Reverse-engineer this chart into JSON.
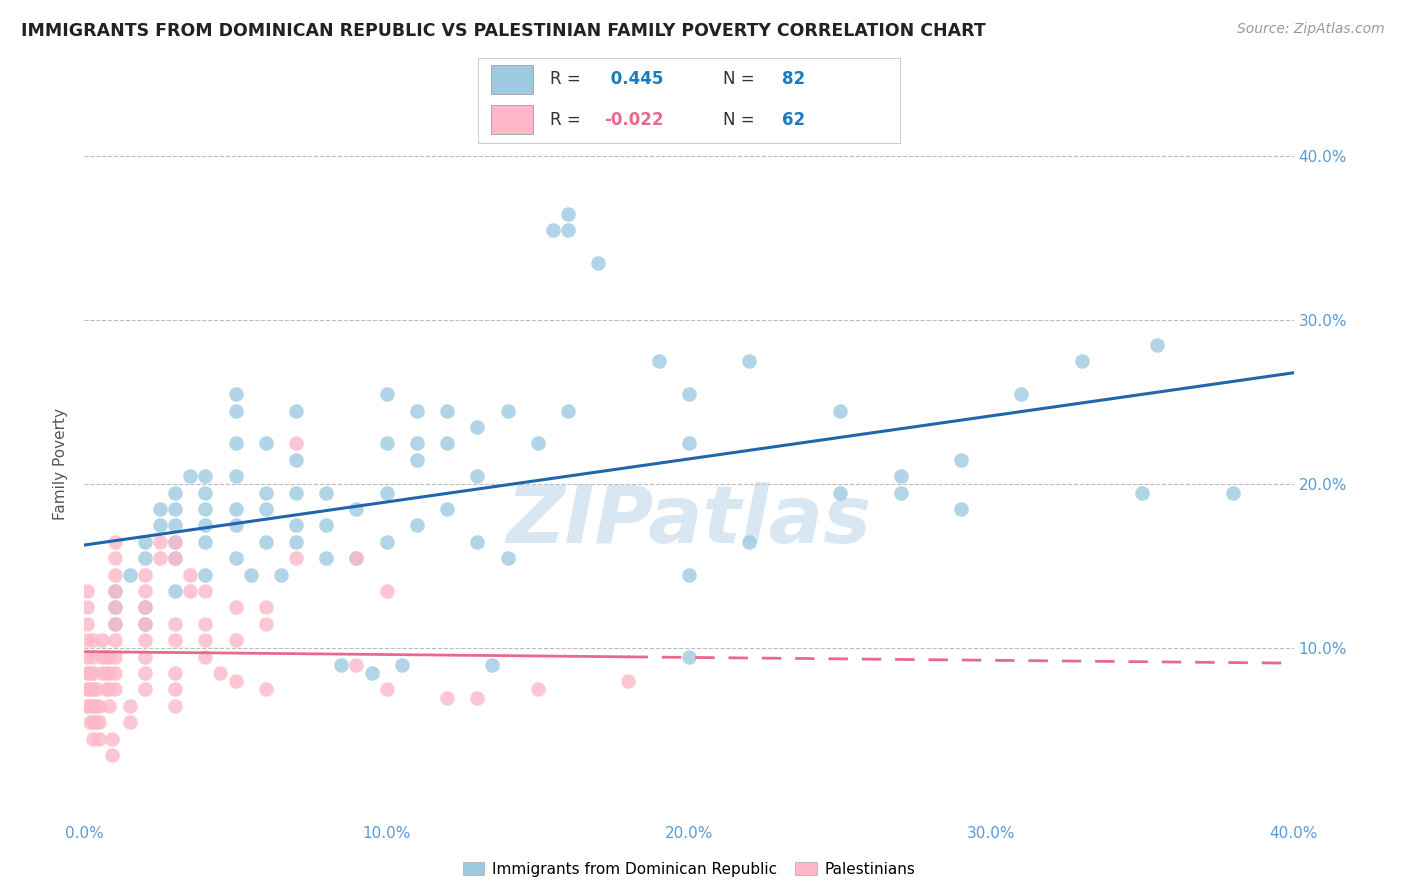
{
  "title": "IMMIGRANTS FROM DOMINICAN REPUBLIC VS PALESTINIAN FAMILY POVERTY CORRELATION CHART",
  "source": "Source: ZipAtlas.com",
  "ylabel": "Family Poverty",
  "xlim": [
    0.0,
    0.4
  ],
  "ylim": [
    -0.005,
    0.43
  ],
  "yticks": [
    0.1,
    0.2,
    0.3,
    0.4
  ],
  "xticks": [
    0.0,
    0.1,
    0.2,
    0.3,
    0.4
  ],
  "ytick_labels": [
    "10.0%",
    "20.0%",
    "30.0%",
    "40.0%"
  ],
  "xtick_labels": [
    "0.0%",
    "10.0%",
    "20.0%",
    "30.0%",
    "40.0%"
  ],
  "legend_label1": "Immigrants from Dominican Republic",
  "legend_label2": "Palestinians",
  "color_blue": "#9ecae1",
  "color_pink": "#fcb8c8",
  "line_blue": "#2166ac",
  "line_pink": "#e8698a",
  "tick_color": "#5b9bd5",
  "watermark": "ZIPatlas",
  "blue_points": [
    [
      0.01,
      0.115
    ],
    [
      0.01,
      0.125
    ],
    [
      0.01,
      0.135
    ],
    [
      0.015,
      0.145
    ],
    [
      0.02,
      0.115
    ],
    [
      0.02,
      0.125
    ],
    [
      0.02,
      0.155
    ],
    [
      0.02,
      0.165
    ],
    [
      0.025,
      0.175
    ],
    [
      0.025,
      0.185
    ],
    [
      0.03,
      0.135
    ],
    [
      0.03,
      0.155
    ],
    [
      0.03,
      0.165
    ],
    [
      0.03,
      0.175
    ],
    [
      0.03,
      0.185
    ],
    [
      0.03,
      0.195
    ],
    [
      0.035,
      0.205
    ],
    [
      0.04,
      0.145
    ],
    [
      0.04,
      0.165
    ],
    [
      0.04,
      0.175
    ],
    [
      0.04,
      0.185
    ],
    [
      0.04,
      0.195
    ],
    [
      0.04,
      0.205
    ],
    [
      0.05,
      0.155
    ],
    [
      0.05,
      0.175
    ],
    [
      0.05,
      0.185
    ],
    [
      0.05,
      0.205
    ],
    [
      0.05,
      0.225
    ],
    [
      0.05,
      0.245
    ],
    [
      0.05,
      0.255
    ],
    [
      0.055,
      0.145
    ],
    [
      0.06,
      0.165
    ],
    [
      0.06,
      0.185
    ],
    [
      0.06,
      0.195
    ],
    [
      0.06,
      0.225
    ],
    [
      0.065,
      0.145
    ],
    [
      0.07,
      0.165
    ],
    [
      0.07,
      0.175
    ],
    [
      0.07,
      0.195
    ],
    [
      0.07,
      0.215
    ],
    [
      0.07,
      0.245
    ],
    [
      0.08,
      0.155
    ],
    [
      0.08,
      0.175
    ],
    [
      0.08,
      0.195
    ],
    [
      0.085,
      0.09
    ],
    [
      0.09,
      0.155
    ],
    [
      0.09,
      0.185
    ],
    [
      0.095,
      0.085
    ],
    [
      0.1,
      0.165
    ],
    [
      0.1,
      0.195
    ],
    [
      0.1,
      0.225
    ],
    [
      0.1,
      0.255
    ],
    [
      0.105,
      0.09
    ],
    [
      0.11,
      0.175
    ],
    [
      0.11,
      0.215
    ],
    [
      0.11,
      0.225
    ],
    [
      0.11,
      0.245
    ],
    [
      0.12,
      0.185
    ],
    [
      0.12,
      0.225
    ],
    [
      0.12,
      0.245
    ],
    [
      0.13,
      0.165
    ],
    [
      0.13,
      0.205
    ],
    [
      0.13,
      0.235
    ],
    [
      0.135,
      0.09
    ],
    [
      0.14,
      0.155
    ],
    [
      0.14,
      0.245
    ],
    [
      0.15,
      0.225
    ],
    [
      0.155,
      0.355
    ],
    [
      0.16,
      0.245
    ],
    [
      0.16,
      0.355
    ],
    [
      0.16,
      0.365
    ],
    [
      0.17,
      0.335
    ],
    [
      0.19,
      0.275
    ],
    [
      0.2,
      0.095
    ],
    [
      0.2,
      0.145
    ],
    [
      0.2,
      0.225
    ],
    [
      0.2,
      0.255
    ],
    [
      0.22,
      0.165
    ],
    [
      0.22,
      0.275
    ],
    [
      0.25,
      0.195
    ],
    [
      0.25,
      0.245
    ],
    [
      0.27,
      0.195
    ],
    [
      0.27,
      0.205
    ],
    [
      0.29,
      0.185
    ],
    [
      0.29,
      0.215
    ],
    [
      0.31,
      0.255
    ],
    [
      0.33,
      0.275
    ],
    [
      0.35,
      0.195
    ],
    [
      0.355,
      0.285
    ],
    [
      0.38,
      0.195
    ]
  ],
  "pink_points": [
    [
      0.001,
      0.085
    ],
    [
      0.001,
      0.095
    ],
    [
      0.001,
      0.105
    ],
    [
      0.001,
      0.115
    ],
    [
      0.001,
      0.125
    ],
    [
      0.001,
      0.135
    ],
    [
      0.001,
      0.065
    ],
    [
      0.001,
      0.075
    ],
    [
      0.002,
      0.055
    ],
    [
      0.002,
      0.065
    ],
    [
      0.002,
      0.075
    ],
    [
      0.002,
      0.085
    ],
    [
      0.003,
      0.045
    ],
    [
      0.003,
      0.055
    ],
    [
      0.003,
      0.065
    ],
    [
      0.003,
      0.075
    ],
    [
      0.003,
      0.085
    ],
    [
      0.003,
      0.095
    ],
    [
      0.003,
      0.105
    ],
    [
      0.004,
      0.055
    ],
    [
      0.004,
      0.065
    ],
    [
      0.004,
      0.075
    ],
    [
      0.005,
      0.045
    ],
    [
      0.005,
      0.055
    ],
    [
      0.005,
      0.065
    ],
    [
      0.006,
      0.085
    ],
    [
      0.006,
      0.095
    ],
    [
      0.006,
      0.105
    ],
    [
      0.007,
      0.075
    ],
    [
      0.007,
      0.085
    ],
    [
      0.007,
      0.095
    ],
    [
      0.008,
      0.065
    ],
    [
      0.008,
      0.075
    ],
    [
      0.008,
      0.085
    ],
    [
      0.008,
      0.095
    ],
    [
      0.009,
      0.035
    ],
    [
      0.009,
      0.045
    ],
    [
      0.01,
      0.075
    ],
    [
      0.01,
      0.085
    ],
    [
      0.01,
      0.095
    ],
    [
      0.01,
      0.105
    ],
    [
      0.01,
      0.115
    ],
    [
      0.01,
      0.125
    ],
    [
      0.01,
      0.135
    ],
    [
      0.01,
      0.145
    ],
    [
      0.01,
      0.155
    ],
    [
      0.01,
      0.165
    ],
    [
      0.015,
      0.055
    ],
    [
      0.015,
      0.065
    ],
    [
      0.02,
      0.075
    ],
    [
      0.02,
      0.085
    ],
    [
      0.02,
      0.095
    ],
    [
      0.02,
      0.105
    ],
    [
      0.02,
      0.115
    ],
    [
      0.02,
      0.125
    ],
    [
      0.02,
      0.135
    ],
    [
      0.02,
      0.145
    ],
    [
      0.025,
      0.155
    ],
    [
      0.025,
      0.165
    ],
    [
      0.03,
      0.065
    ],
    [
      0.03,
      0.075
    ],
    [
      0.03,
      0.085
    ],
    [
      0.03,
      0.105
    ],
    [
      0.03,
      0.115
    ],
    [
      0.03,
      0.155
    ],
    [
      0.03,
      0.165
    ],
    [
      0.035,
      0.135
    ],
    [
      0.035,
      0.145
    ],
    [
      0.04,
      0.095
    ],
    [
      0.04,
      0.105
    ],
    [
      0.04,
      0.115
    ],
    [
      0.04,
      0.135
    ],
    [
      0.045,
      0.085
    ],
    [
      0.05,
      0.08
    ],
    [
      0.05,
      0.105
    ],
    [
      0.05,
      0.125
    ],
    [
      0.06,
      0.075
    ],
    [
      0.06,
      0.115
    ],
    [
      0.06,
      0.125
    ],
    [
      0.07,
      0.155
    ],
    [
      0.07,
      0.225
    ],
    [
      0.09,
      0.155
    ],
    [
      0.09,
      0.09
    ],
    [
      0.1,
      0.075
    ],
    [
      0.1,
      0.135
    ],
    [
      0.12,
      0.07
    ],
    [
      0.13,
      0.07
    ],
    [
      0.15,
      0.075
    ],
    [
      0.18,
      0.08
    ]
  ],
  "blue_line_y0": 0.163,
  "blue_line_y1": 0.268,
  "pink_line_y0": 0.098,
  "pink_line_y1": 0.091
}
